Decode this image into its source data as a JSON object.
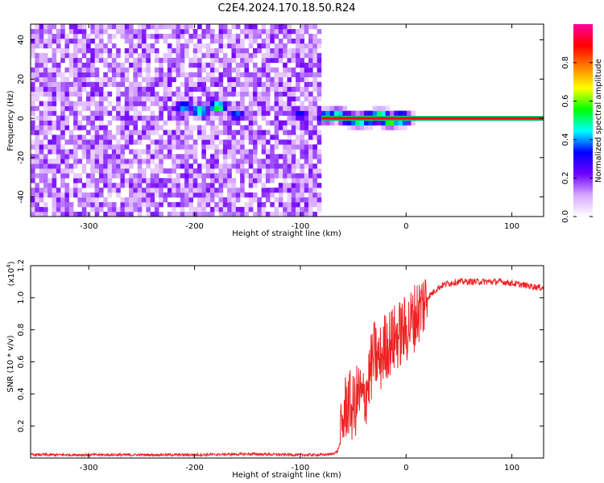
{
  "figure_title": "C2E4.2024.170.18.50.R24",
  "chart_data": [
    {
      "type": "heatmap",
      "panel": "spectrogram",
      "xlabel": "Height of straight line (km)",
      "ylabel": "Frequency (Hz)",
      "xlim": [
        -355,
        130
      ],
      "ylim": [
        -50,
        48
      ],
      "xticks": [
        -300,
        -200,
        -100,
        0,
        100
      ],
      "yticks": [
        -40,
        -20,
        0,
        20,
        40
      ],
      "grid": false,
      "noise_region_x": [
        -355,
        -80
      ],
      "signal_line": {
        "frequency_hz": 0,
        "x_start": -80,
        "x_end": 130,
        "amplitude": 0.9
      },
      "signal_bursts": [
        {
          "x": -210,
          "y": 6,
          "amplitude": 0.45
        },
        {
          "x": -195,
          "y": 4,
          "amplitude": 0.55
        },
        {
          "x": -178,
          "y": 6,
          "amplitude": 0.6
        },
        {
          "x": -160,
          "y": 2,
          "amplitude": 0.4
        },
        {
          "x": -100,
          "y": 2,
          "amplitude": 0.35
        },
        {
          "x": -75,
          "y": 1,
          "amplitude": 0.55
        },
        {
          "x": -65,
          "y": 2,
          "amplitude": 0.5
        },
        {
          "x": -55,
          "y": 0,
          "amplitude": 0.55
        },
        {
          "x": -45,
          "y": -1,
          "amplitude": 0.6
        },
        {
          "x": -35,
          "y": 0,
          "amplitude": 0.65
        },
        {
          "x": -25,
          "y": 1,
          "amplitude": 0.7
        },
        {
          "x": -15,
          "y": -1,
          "amplitude": 0.7
        },
        {
          "x": -5,
          "y": 0,
          "amplitude": 0.75
        }
      ],
      "colorbar": {
        "label": "Normalized spectral amplitude",
        "range": [
          0.0,
          1.0
        ],
        "ticks": [
          0.0,
          0.2,
          0.4,
          0.6,
          0.8
        ],
        "colors": [
          "#ffffff",
          "#d8a8ff",
          "#7000ff",
          "#0000ff",
          "#00ffff",
          "#00ff00",
          "#ffff00",
          "#ff8000",
          "#ff0000",
          "#ff00a0"
        ]
      }
    },
    {
      "type": "line",
      "panel": "snr",
      "xlabel": "Height of straight line (km)",
      "ylabel": "SNR (10 * v/v)",
      "y_scale_label": "(x10",
      "y_scale_exponent": "4",
      "xlim": [
        -355,
        130
      ],
      "ylim": [
        0,
        1.2
      ],
      "xticks": [
        -300,
        -200,
        -100,
        0,
        100
      ],
      "yticks": [
        0.2,
        0.4,
        0.6,
        0.8,
        1.0,
        1.2
      ],
      "grid": false,
      "color": "#ee2222",
      "series": [
        {
          "x": [
            -355,
            -300,
            -250,
            -200,
            -150,
            -100,
            -80,
            -70,
            -65,
            -62,
            -60,
            -58,
            -55,
            -50,
            -45,
            -40,
            -35,
            -30,
            -25,
            -20,
            -15,
            -10,
            -5,
            0,
            5,
            10,
            15,
            20,
            25,
            30,
            35,
            40,
            50,
            60,
            70,
            80,
            90,
            100,
            110,
            120,
            130
          ],
          "values": [
            0.02,
            0.02,
            0.02,
            0.02,
            0.025,
            0.02,
            0.02,
            0.025,
            0.04,
            0.1,
            0.2,
            0.3,
            0.35,
            0.3,
            0.4,
            0.35,
            0.5,
            0.65,
            0.6,
            0.7,
            0.72,
            0.75,
            0.78,
            0.8,
            0.85,
            0.9,
            0.95,
            1.0,
            1.03,
            1.06,
            1.08,
            1.09,
            1.1,
            1.1,
            1.1,
            1.1,
            1.1,
            1.09,
            1.08,
            1.07,
            1.06
          ]
        }
      ]
    }
  ]
}
